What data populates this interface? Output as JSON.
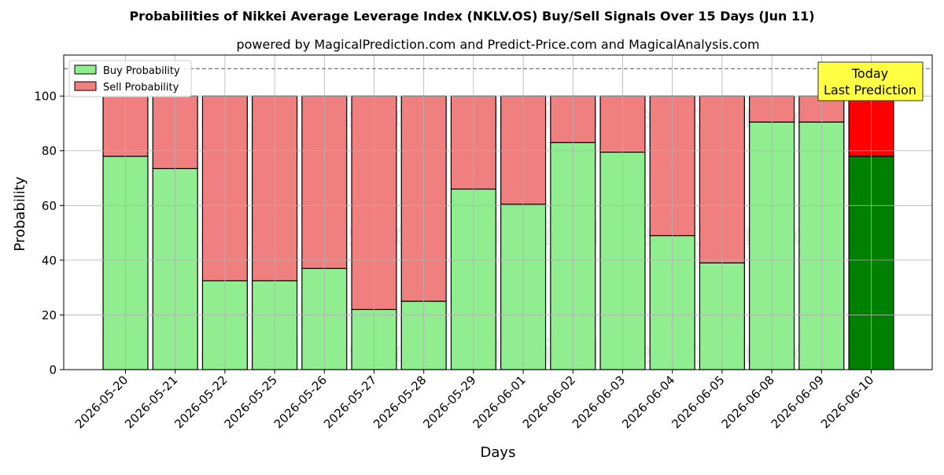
{
  "chart_data": {
    "type": "bar",
    "stacked": true,
    "title": "Probabilities of Nikkei Average Leverage Index (NKLV.OS) Buy/Sell Signals Over 15 Days (Jun 11)",
    "subtitle": "powered by MagicalPrediction.com and Predict-Price.com and MagicalAnalysis.com",
    "xlabel": "Days",
    "ylabel": "Probability",
    "ylim": [
      0,
      115
    ],
    "yticks": [
      0,
      20,
      40,
      60,
      80,
      100
    ],
    "grid": true,
    "legend_position": "top-left",
    "reference_line": 110,
    "categories": [
      "2026-05-20",
      "2026-05-21",
      "2026-05-22",
      "2026-05-25",
      "2026-05-26",
      "2026-05-27",
      "2026-05-28",
      "2026-05-29",
      "2026-06-01",
      "2026-06-02",
      "2026-06-03",
      "2026-06-04",
      "2026-06-05",
      "2026-06-08",
      "2026-06-09",
      "2026-06-10"
    ],
    "series": [
      {
        "name": "Buy Probability",
        "values": [
          78,
          73.5,
          32.5,
          32.5,
          37,
          22,
          25,
          66,
          60.5,
          83,
          79.5,
          49,
          39,
          90.5,
          90.5,
          78
        ]
      },
      {
        "name": "Sell Probability",
        "values": [
          22,
          26.5,
          67.5,
          67.5,
          63,
          78,
          75,
          34,
          39.5,
          17,
          20.5,
          51,
          61,
          9.5,
          9.5,
          22
        ]
      }
    ],
    "colors": {
      "buy": "#90ee90",
      "sell": "#f08080",
      "buy_highlight": "#008000",
      "sell_highlight": "#ff0000",
      "annotation_bg": "#ffff44"
    },
    "annotation": {
      "lines": [
        "Today",
        "Last Prediction"
      ]
    },
    "watermarks": [
      "MagicalAnalysis.com",
      "MagicalPrediction.com"
    ]
  }
}
